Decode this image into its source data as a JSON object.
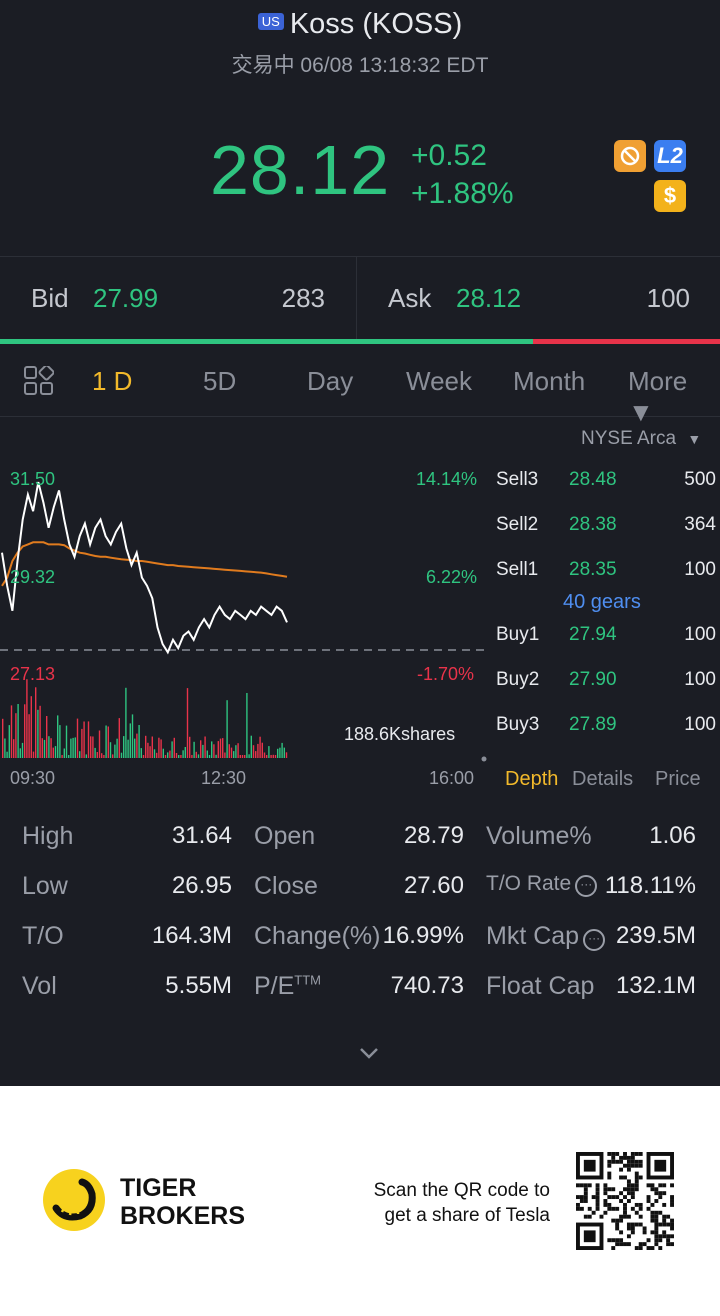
{
  "header": {
    "market_badge": "US",
    "title": "Koss (KOSS)",
    "status": "交易中 06/08 13:18:32 EDT",
    "price": "28.12",
    "change": "+0.52",
    "change_pct": "+1.88%",
    "icons": [
      "no-short-icon",
      "level2-icon",
      "dollar-icon"
    ],
    "icon_l2_label": "L2",
    "icon_dollar_label": "$"
  },
  "bidask": {
    "bid_label": "Bid",
    "bid_price": "27.99",
    "bid_qty": "283",
    "ask_label": "Ask",
    "ask_price": "28.12",
    "ask_qty": "100",
    "bid_ratio": 0.74
  },
  "tabs": [
    {
      "label": "1 D",
      "active": true
    },
    {
      "label": "5D"
    },
    {
      "label": "Day"
    },
    {
      "label": "Week"
    },
    {
      "label": "Month"
    },
    {
      "label": "More ▼"
    }
  ],
  "chart": {
    "exchange": "NYSE Arca",
    "y_left": [
      "31.50",
      "29.32",
      "27.13"
    ],
    "y_right": [
      "14.14%",
      "6.22%",
      "-1.70%"
    ],
    "x_labels": [
      "09:30",
      "12:30",
      "16:00"
    ],
    "volume_label": "188.6Kshares",
    "prev_close": 27.6,
    "y_range": [
      27.13,
      31.5
    ],
    "price_series": [
      29.8,
      29.0,
      28.4,
      29.6,
      30.6,
      31.2,
      30.8,
      31.5,
      31.0,
      30.4,
      30.9,
      31.3,
      30.6,
      30.0,
      29.7,
      30.2,
      30.5,
      30.0,
      30.4,
      30.6,
      30.2,
      30.0,
      30.3,
      30.5,
      29.9,
      29.5,
      29.8,
      29.2,
      29.0,
      28.7,
      28.0,
      27.6,
      27.4,
      27.7,
      27.5,
      27.8,
      27.9,
      27.7,
      28.0,
      28.2,
      28.0,
      28.3,
      28.5,
      28.3,
      28.2,
      28.4,
      28.3,
      28.2,
      28.4,
      28.3,
      28.5,
      28.4,
      28.3,
      28.5,
      28.4,
      28.12
    ],
    "avg_series": [
      29.0,
      29.2,
      29.6,
      29.8,
      29.95,
      30.0,
      30.05,
      30.05,
      30.05,
      30.0,
      30.0,
      30.0,
      29.98,
      29.9,
      29.85,
      29.8,
      29.78,
      29.75,
      29.72,
      29.7,
      29.7,
      29.68,
      29.66,
      29.64,
      29.63,
      29.62,
      29.6,
      29.6,
      29.58,
      29.56,
      29.54,
      29.52,
      29.5,
      29.5,
      29.48,
      29.47,
      29.46,
      29.45,
      29.44,
      29.43,
      29.42,
      29.41,
      29.4,
      29.39,
      29.38,
      29.37,
      29.36,
      29.35,
      29.34,
      29.33,
      29.32,
      29.3,
      29.28,
      29.26,
      29.24,
      29.22
    ]
  },
  "orderbook": {
    "sells": [
      {
        "label": "Sell3",
        "price": "28.48",
        "qty": "500"
      },
      {
        "label": "Sell2",
        "price": "28.38",
        "qty": "364"
      },
      {
        "label": "Sell1",
        "price": "28.35",
        "qty": "100"
      }
    ],
    "gears": "40 gears",
    "buys": [
      {
        "label": "Buy1",
        "price": "27.94",
        "qty": "100"
      },
      {
        "label": "Buy2",
        "price": "27.90",
        "qty": "100"
      },
      {
        "label": "Buy3",
        "price": "27.89",
        "qty": "100"
      }
    ],
    "subtabs": [
      "Depth",
      "Details",
      "Price"
    ]
  },
  "stats": {
    "high_k": "High",
    "high_v": "31.64",
    "low_k": "Low",
    "low_v": "26.95",
    "to_k": "T/O",
    "to_v": "164.3M",
    "vol_k": "Vol",
    "vol_v": "5.55M",
    "open_k": "Open",
    "open_v": "28.79",
    "close_k": "Close",
    "close_v": "27.60",
    "changepct_k": "Change(%)",
    "changepct_v": "16.99%",
    "pe_k": "P/E",
    "pe_sup": "TTM",
    "pe_v": "740.73",
    "volpct_k": "Volume%",
    "volpct_v": "1.06",
    "torate_k": "T/O Rate",
    "torate_v": "118.11%",
    "mktcap_k": "Mkt Cap",
    "mktcap_v": "239.5M",
    "floatcap_k": "Float Cap",
    "floatcap_v": "132.1M"
  },
  "footer": {
    "brand_line1": "TIGER",
    "brand_line2": "BROKERS",
    "promo_line1": "Scan the QR code to",
    "promo_line2": "get a share of Tesla"
  },
  "colors": {
    "up": "#2fc480",
    "down": "#e8334a",
    "accent": "#f2b92b",
    "background": "#1b1d24"
  }
}
